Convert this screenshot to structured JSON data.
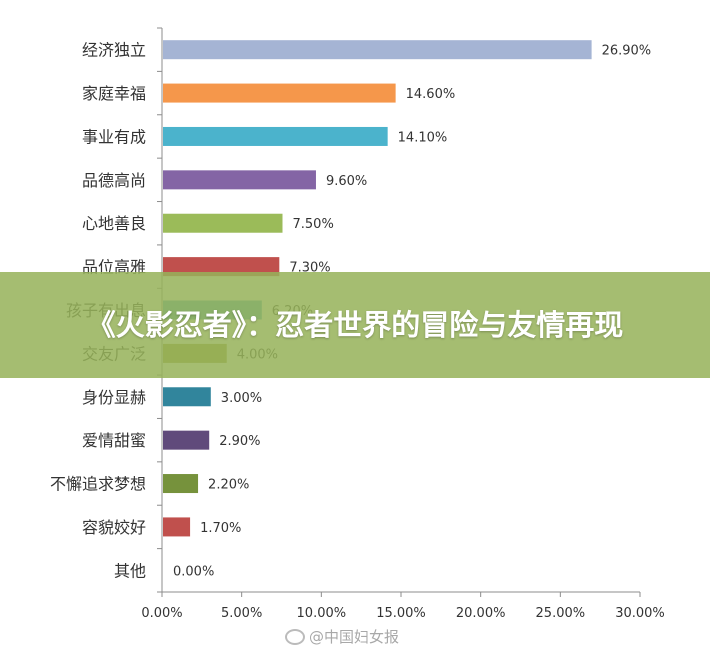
{
  "chart_data": {
    "type": "bar",
    "orientation": "horizontal",
    "categories": [
      "经济独立",
      "家庭幸福",
      "事业有成",
      "品德高尚",
      "心地善良",
      "品位高雅",
      "孩子有出息",
      "交友广泛",
      "身份显赫",
      "爱情甜蜜",
      "不懈追求梦想",
      "容貌姣好",
      "其他"
    ],
    "values": [
      26.9,
      14.6,
      14.1,
      9.6,
      7.5,
      7.3,
      6.2,
      4.0,
      3.0,
      2.9,
      2.2,
      1.7,
      0.0
    ],
    "value_labels": [
      "26.90%",
      "14.60%",
      "14.10%",
      "9.60%",
      "7.50%",
      "7.30%",
      "6.20%",
      "4.00%",
      "3.00%",
      "2.90%",
      "2.20%",
      "1.70%",
      "0.00%"
    ],
    "colors": [
      "#a5b4d4",
      "#f5974b",
      "#4bb3cc",
      "#8465a5",
      "#9bbb59",
      "#c0504d",
      "#4bacc6",
      "#9a9a38",
      "#31859c",
      "#604a7b",
      "#76923c",
      "#c0504d",
      "#4f81bd"
    ],
    "xlim": [
      0,
      30
    ],
    "xticks": [
      "0.00%",
      "5.00%",
      "10.00%",
      "15.00%",
      "20.00%",
      "25.00%",
      "30.00%"
    ],
    "title": "",
    "xlabel": "",
    "ylabel": "",
    "grid": false,
    "legend": "none"
  },
  "banner": {
    "text": "《火影忍者》：忍者世界的冒险与友情再现"
  },
  "watermark": {
    "icon": "weibo-icon",
    "text": "@中国妇女报"
  }
}
